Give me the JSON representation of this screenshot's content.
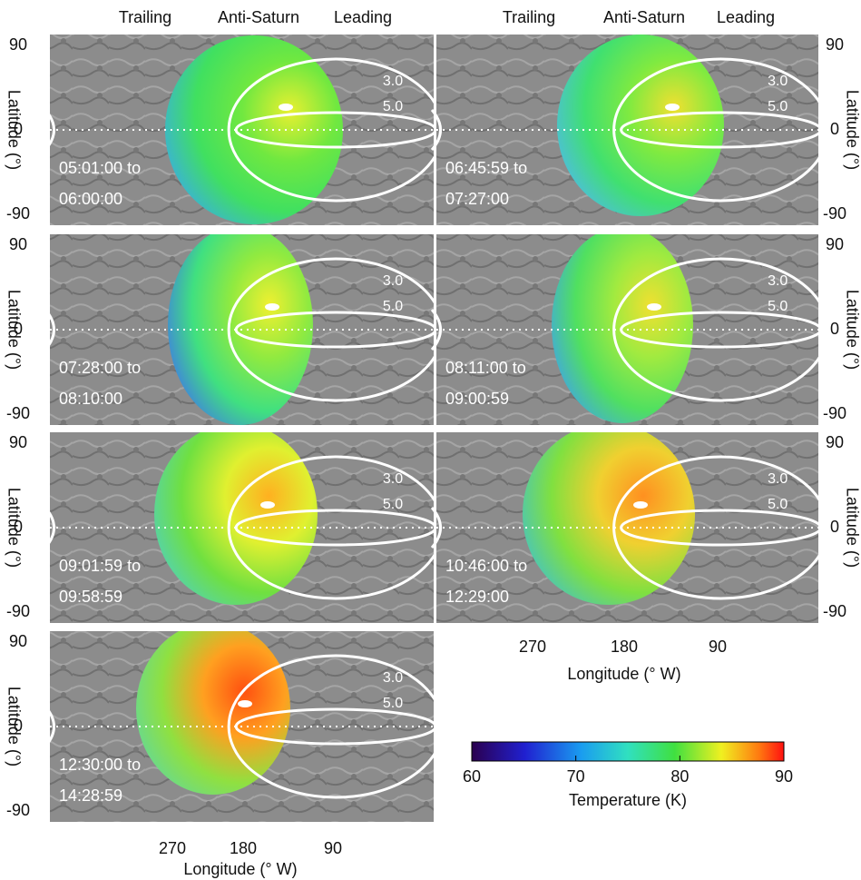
{
  "header": {
    "columns": [
      [
        "Trailing",
        "Anti-Saturn",
        "Leading"
      ],
      [
        "Trailing",
        "Anti-Saturn",
        "Leading"
      ]
    ]
  },
  "panels": [
    {
      "time": [
        "05:01:00 to",
        "06:00:00"
      ]
    },
    {
      "time": [
        "06:45:59 to",
        "07:27:00"
      ]
    },
    {
      "time": [
        "07:28:00 to",
        "08:10:00"
      ]
    },
    {
      "time": [
        "08:11:00 to",
        "09:00:59"
      ]
    },
    {
      "time": [
        "09:01:59 to",
        "09:58:59"
      ]
    },
    {
      "time": [
        "10:46:00 to",
        "12:29:00"
      ]
    },
    {
      "time": [
        "12:30:00 to",
        "14:28:59"
      ]
    }
  ],
  "contour_labels": [
    "3.0",
    "5.0"
  ],
  "lat_ticks": [
    "90",
    "0",
    "-90"
  ],
  "lat_label": "Latitude (°)",
  "lon_ticks": [
    "270",
    "180",
    "90"
  ],
  "lon_label": "Longitude (° W)",
  "colorbar": {
    "label": "Temperature (K)",
    "range": [
      60,
      90
    ],
    "ticks": [
      60,
      70,
      80,
      90
    ]
  }
}
